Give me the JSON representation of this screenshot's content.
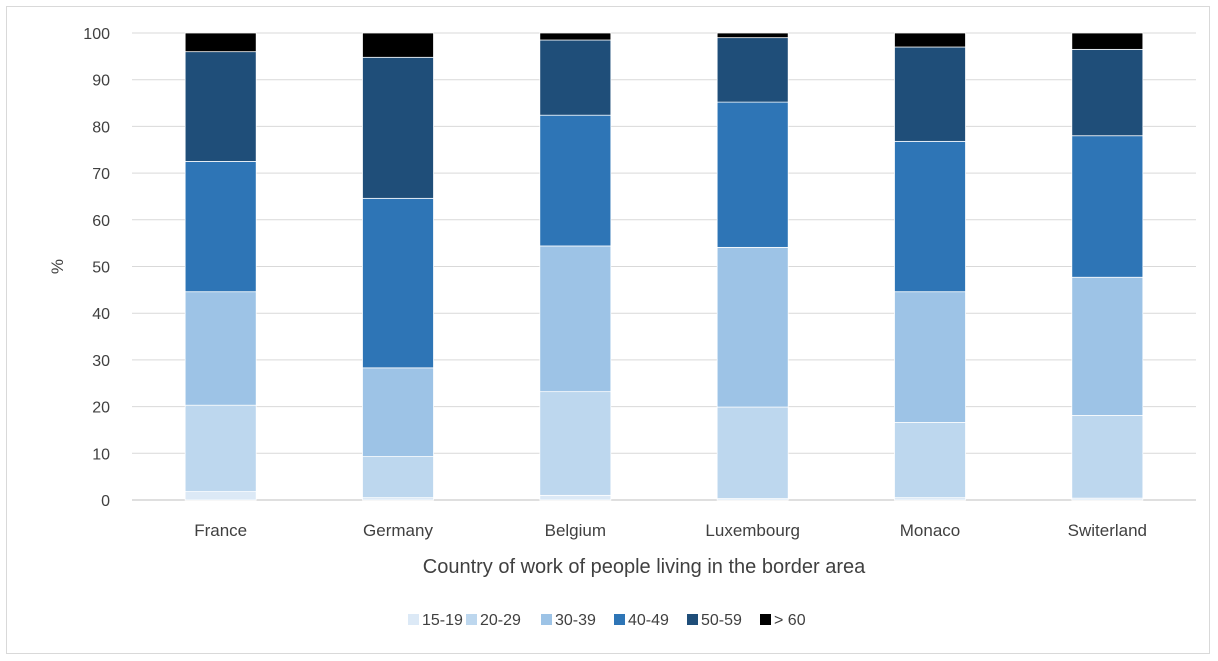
{
  "chart_data": {
    "type": "bar",
    "stacked": true,
    "title": "",
    "xlabel": "Country of work of people living in the border area",
    "ylabel": "%",
    "ylim": [
      0,
      100
    ],
    "yticks": [
      0,
      10,
      20,
      30,
      40,
      50,
      60,
      70,
      80,
      90,
      100
    ],
    "grid": true,
    "legend_position": "bottom",
    "categories": [
      "France",
      "Germany",
      "Belgium",
      "Luxembourg",
      "Monaco",
      "Switerland"
    ],
    "series": [
      {
        "name": "15-19",
        "color": "#dce9f6",
        "values": [
          1.8,
          0.5,
          1.0,
          0.3,
          0.5,
          0.4
        ]
      },
      {
        "name": "20-29",
        "color": "#bdd7ee",
        "values": [
          18.5,
          8.8,
          22.2,
          19.6,
          16.1,
          17.7
        ]
      },
      {
        "name": "30-39",
        "color": "#9dc3e6",
        "values": [
          24.3,
          19.0,
          31.2,
          34.2,
          28.0,
          29.6
        ]
      },
      {
        "name": "40-49",
        "color": "#2e75b6",
        "values": [
          27.9,
          36.3,
          28.0,
          31.1,
          32.2,
          30.3
        ]
      },
      {
        "name": "50-59",
        "color": "#1f4e79",
        "values": [
          23.5,
          30.2,
          16.1,
          13.8,
          20.2,
          18.5
        ]
      },
      {
        "name": "> 60",
        "color": "#000000",
        "values": [
          4.0,
          5.2,
          1.5,
          1.0,
          3.0,
          3.5
        ]
      }
    ]
  }
}
